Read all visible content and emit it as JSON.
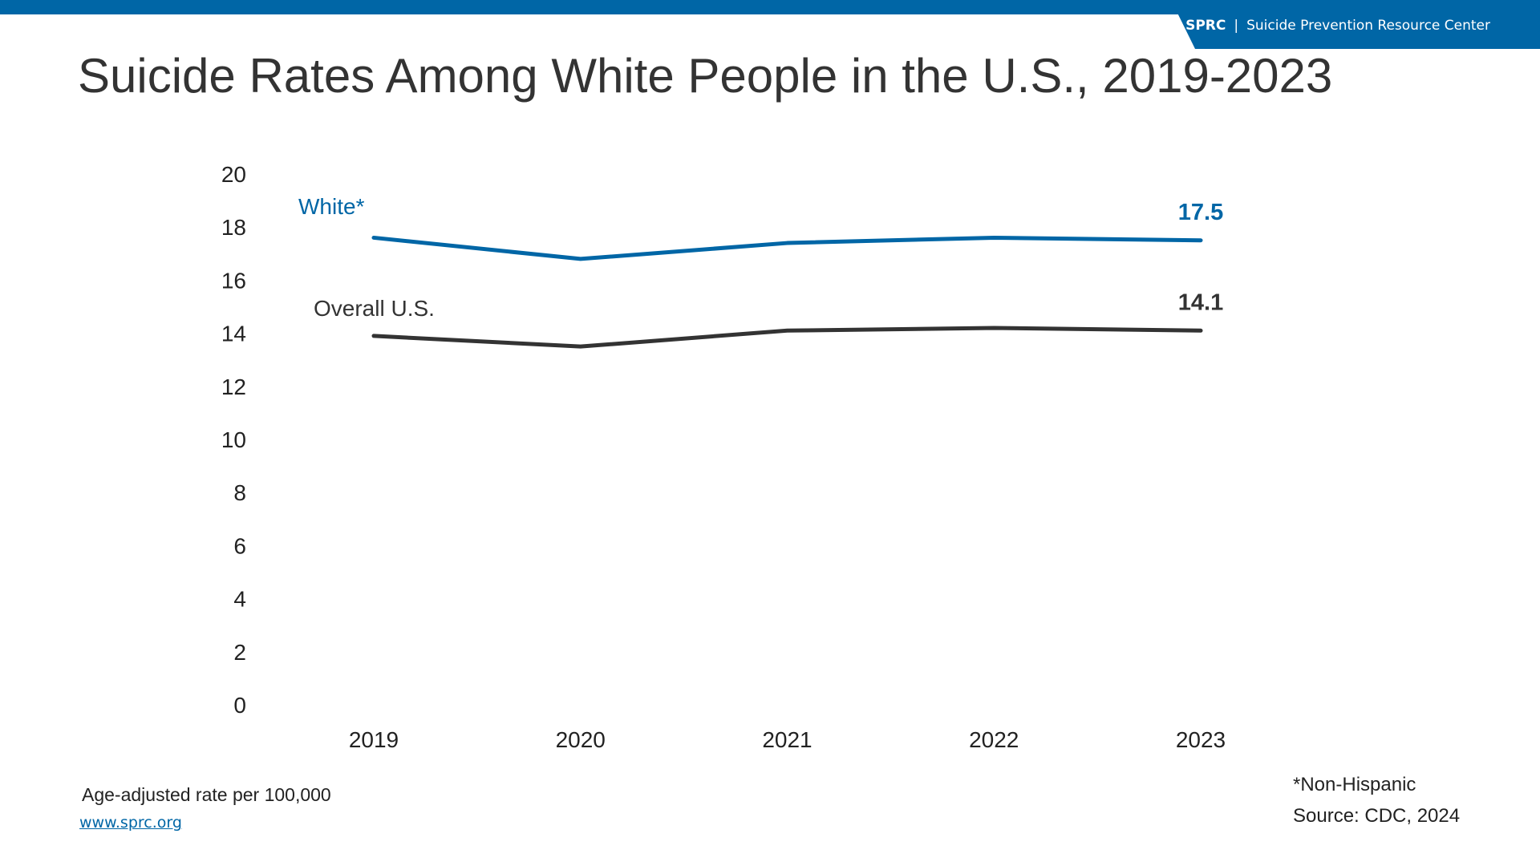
{
  "header": {
    "brand_abbr": "SPRC",
    "brand_separator": "|",
    "brand_name": "Suicide Prevention Resource Center",
    "bar_color": "#0066a6"
  },
  "footer": {
    "unit_note": "Age-adjusted rate per 100,000",
    "website": "www.sprc.org",
    "footnote": "*Non-Hispanic",
    "source": "Source: CDC, 2024"
  },
  "chart_data": {
    "type": "line",
    "title": "Suicide Rates Among White People in the U.S., 2019-2023",
    "x": [
      "2019",
      "2020",
      "2021",
      "2022",
      "2023"
    ],
    "ylim": [
      0,
      20
    ],
    "yticks": [
      0,
      2,
      4,
      6,
      8,
      10,
      12,
      14,
      16,
      18,
      20
    ],
    "grid": false,
    "legend": "inline labels",
    "series": [
      {
        "name": "White*",
        "values": [
          17.6,
          16.8,
          17.4,
          17.6,
          17.5
        ],
        "color": "#0066a6",
        "end_label": "17.5"
      },
      {
        "name": "Overall U.S.",
        "values": [
          13.9,
          13.5,
          14.1,
          14.2,
          14.1
        ],
        "color": "#333333",
        "end_label": "14.1"
      }
    ]
  }
}
